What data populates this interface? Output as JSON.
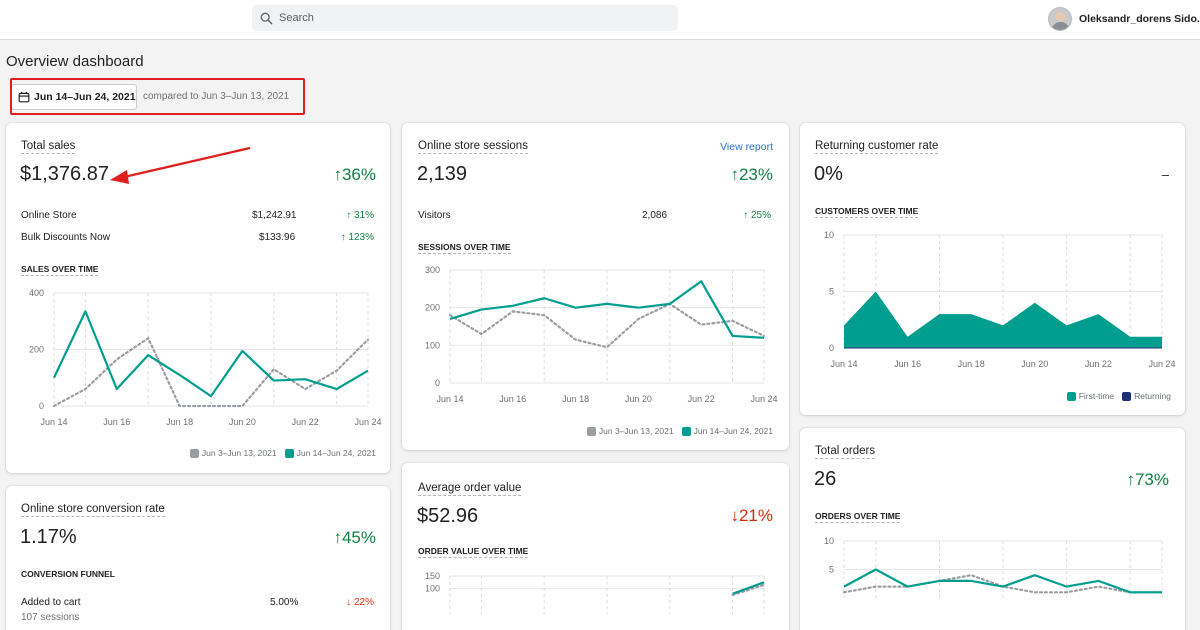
{
  "topbar": {
    "search_placeholder": "Search",
    "user_name": "Oleksandr_dorens Sido..."
  },
  "page": {
    "title": "Overview dashboard",
    "date_range": "Jun 14–Jun 24, 2021",
    "compare_text": "compared to Jun 3–Jun 13, 2021"
  },
  "colors": {
    "teal": "#009e8f",
    "dotted": "#9a9ea3",
    "navy": "#202e78",
    "up": "#108043",
    "down": "#d82c0d",
    "highlight": "#e02020"
  },
  "total_sales": {
    "title": "Total sales",
    "value": "$1,376.87",
    "delta": "↑36%",
    "rows": [
      {
        "label": "Online Store",
        "value": "$1,242.91",
        "delta": "↑ 31%"
      },
      {
        "label": "Bulk Discounts Now",
        "value": "$133.96",
        "delta": "↑ 123%"
      }
    ],
    "chart_label": "SALES OVER TIME",
    "legend": [
      "Jun 3–Jun 13, 2021",
      "Jun 14–Jun 24, 2021"
    ]
  },
  "sessions": {
    "title": "Online store sessions",
    "link": "View report",
    "value": "2,139",
    "delta": "↑23%",
    "rows": [
      {
        "label": "Visitors",
        "value": "2,086",
        "delta": "↑ 25%"
      }
    ],
    "chart_label": "SESSIONS OVER TIME",
    "legend": [
      "Jun 3–Jun 13, 2021",
      "Jun 14–Jun 24, 2021"
    ]
  },
  "returning": {
    "title": "Returning customer rate",
    "value": "0%",
    "delta": "–",
    "chart_label": "CUSTOMERS OVER TIME",
    "legend": [
      "First-time",
      "Returning"
    ]
  },
  "conversion": {
    "title": "Online store conversion rate",
    "value": "1.17%",
    "delta": "↑45%",
    "funnel_label": "CONVERSION FUNNEL",
    "rows": [
      {
        "label": "Added to cart",
        "sub": "107 sessions",
        "value": "5.00%",
        "delta": "↓ 22%"
      }
    ]
  },
  "aov": {
    "title": "Average order value",
    "value": "$52.96",
    "delta": "↓21%",
    "chart_label": "ORDER VALUE OVER TIME"
  },
  "orders": {
    "title": "Total orders",
    "value": "26",
    "delta": "↑73%",
    "chart_label": "ORDERS OVER TIME"
  },
  "chart_data": [
    {
      "type": "line",
      "x": [
        "Jun 14",
        "Jun 15",
        "Jun 16",
        "Jun 17",
        "Jun 18",
        "Jun 19",
        "Jun 20",
        "Jun 21",
        "Jun 22",
        "Jun 23",
        "Jun 24"
      ],
      "x_tick_labels": [
        "Jun 14",
        "Jun 16",
        "Jun 18",
        "Jun 20",
        "Jun 22",
        "Jun 24"
      ],
      "y_ticks": [
        "0",
        "200",
        "400"
      ],
      "ylim": [
        0,
        400
      ],
      "series": [
        {
          "name": "Jun 14–Jun 24, 2021",
          "values": [
            100,
            335,
            60,
            180,
            110,
            35,
            195,
            90,
            95,
            60,
            125
          ]
        },
        {
          "name": "Jun 3–Jun 13, 2021",
          "values": [
            0,
            60,
            165,
            240,
            0,
            0,
            0,
            130,
            60,
            125,
            235
          ]
        }
      ],
      "legend_position": "bottom-right",
      "grid": true
    },
    {
      "type": "line",
      "x": [
        "Jun 14",
        "Jun 15",
        "Jun 16",
        "Jun 17",
        "Jun 18",
        "Jun 19",
        "Jun 20",
        "Jun 21",
        "Jun 22",
        "Jun 23",
        "Jun 24"
      ],
      "x_tick_labels": [
        "Jun 14",
        "Jun 16",
        "Jun 18",
        "Jun 20",
        "Jun 22",
        "Jun 24"
      ],
      "y_ticks": [
        "0",
        "100",
        "200",
        "300"
      ],
      "ylim": [
        0,
        300
      ],
      "series": [
        {
          "name": "Jun 14–Jun 24, 2021",
          "values": [
            170,
            195,
            205,
            225,
            200,
            210,
            200,
            210,
            270,
            125,
            120
          ]
        },
        {
          "name": "Jun 3–Jun 13, 2021",
          "values": [
            180,
            130,
            190,
            180,
            115,
            95,
            170,
            210,
            155,
            165,
            125
          ]
        }
      ],
      "legend_position": "bottom-right",
      "grid": true
    },
    {
      "type": "area",
      "x": [
        "Jun 14",
        "Jun 15",
        "Jun 16",
        "Jun 17",
        "Jun 18",
        "Jun 19",
        "Jun 20",
        "Jun 21",
        "Jun 22",
        "Jun 23",
        "Jun 24"
      ],
      "x_tick_labels": [
        "Jun 14",
        "Jun 16",
        "Jun 18",
        "Jun 20",
        "Jun 22",
        "Jun 24"
      ],
      "y_ticks": [
        "0",
        "5",
        "10"
      ],
      "ylim": [
        0,
        10
      ],
      "series": [
        {
          "name": "First-time",
          "values": [
            2,
            5,
            1,
            3,
            3,
            2,
            4,
            2,
            3,
            1,
            1
          ]
        },
        {
          "name": "Returning",
          "values": [
            0,
            0,
            0,
            0,
            0,
            0,
            0,
            0,
            0,
            0,
            0
          ]
        }
      ],
      "legend_position": "bottom-right",
      "grid": true
    },
    {
      "type": "line",
      "y_ticks": [
        "100",
        "150"
      ],
      "ylim": [
        0,
        150
      ],
      "series": [
        {
          "name": "Jun 14–Jun 24, 2021",
          "values": [
            null,
            null,
            null,
            null,
            null,
            null,
            null,
            null,
            null,
            80,
            125
          ]
        },
        {
          "name": "Jun 3–Jun 13, 2021",
          "values": [
            null,
            null,
            null,
            null,
            null,
            null,
            null,
            null,
            null,
            75,
            115
          ]
        }
      ],
      "grid": true
    },
    {
      "type": "line",
      "y_ticks": [
        "5",
        "10"
      ],
      "ylim": [
        0,
        10
      ],
      "series": [
        {
          "name": "Jun 14–Jun 24, 2021",
          "values": [
            2,
            5,
            2,
            3,
            3,
            2,
            4,
            2,
            3,
            1,
            1
          ]
        },
        {
          "name": "Jun 3–Jun 13, 2021",
          "values": [
            1,
            2,
            2,
            3,
            4,
            2,
            1,
            1,
            2,
            1,
            1
          ]
        }
      ],
      "grid": true
    }
  ]
}
